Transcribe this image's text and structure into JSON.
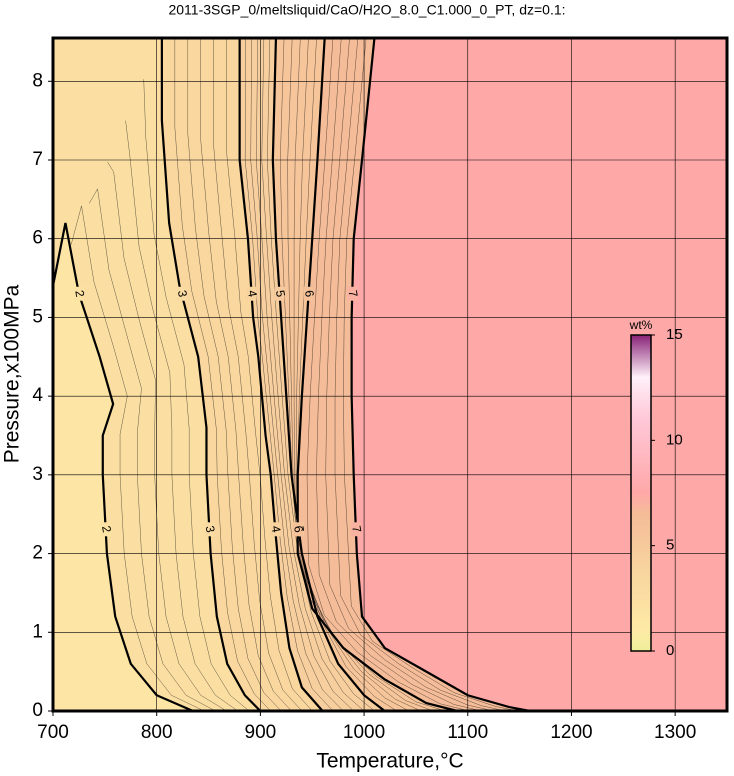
{
  "chart_data": {
    "type": "contour",
    "title": "2011-3SGP_0/meltsliquid/CaO/H2O_8.0_C1.000_0_PT, dz=0.1:",
    "x_label": "Temperature,°C",
    "y_label": "Pressure,x100MPa",
    "xlim": [
      700,
      1350
    ],
    "ylim": [
      0,
      8.55
    ],
    "xticks": [
      700,
      800,
      900,
      1000,
      1100,
      1200,
      1300
    ],
    "yticks": [
      0,
      1,
      2,
      3,
      4,
      5,
      6,
      7,
      8
    ],
    "grid": true,
    "colorbar": {
      "label": "wt%",
      "range": [
        0,
        15
      ],
      "ticks": [
        0,
        5,
        10,
        15
      ],
      "stops": [
        {
          "value": 0,
          "color": "#eeee99"
        },
        {
          "value": 1,
          "color": "#feeaa6"
        },
        {
          "value": 4,
          "color": "#f8d39e"
        },
        {
          "value": 6.5,
          "color": "#f4bc98"
        },
        {
          "value": 7.5,
          "color": "#ffa8a8"
        },
        {
          "value": 11,
          "color": "#ffc8d8"
        },
        {
          "value": 13,
          "color": "#fff0f8"
        },
        {
          "value": 15,
          "color": "#882277"
        }
      ]
    },
    "contours": [
      {
        "level": 2,
        "x": [
          700,
          712,
          725,
          745,
          758,
          748,
          748,
          752,
          760,
          775,
          800,
          835
        ],
        "y": [
          5.4,
          6.2,
          5.3,
          4.5,
          3.9,
          3.5,
          3.0,
          2.0,
          1.2,
          0.6,
          0.2,
          0
        ]
      },
      {
        "level": 3,
        "x": [
          805,
          805,
          812,
          822,
          840,
          848,
          848,
          852,
          858,
          868,
          885,
          900
        ],
        "y": [
          8.55,
          7.5,
          6.2,
          5.4,
          4.5,
          3.6,
          3.0,
          2.0,
          1.2,
          0.6,
          0.2,
          0
        ]
      },
      {
        "level": 4,
        "x": [
          880,
          880,
          888,
          893,
          898,
          905,
          910,
          915,
          920,
          928,
          940,
          960
        ],
        "y": [
          8.55,
          7.0,
          6.0,
          5.0,
          4.5,
          3.5,
          3.0,
          2.2,
          1.5,
          0.8,
          0.3,
          0
        ]
      },
      {
        "level": 5,
        "x": [
          915,
          912,
          915,
          920,
          925,
          930,
          940,
          955,
          975,
          1000,
          1020
        ],
        "y": [
          8.55,
          7.0,
          6.0,
          5.0,
          4.0,
          3.0,
          2.0,
          1.2,
          0.6,
          0.2,
          0
        ]
      },
      {
        "level": 6,
        "x": [
          962,
          955,
          950,
          945,
          940,
          936,
          936,
          950,
          980,
          1020,
          1060,
          1090
        ],
        "y": [
          8.55,
          7.0,
          6.0,
          5.0,
          4.0,
          3.0,
          2.0,
          1.3,
          0.8,
          0.4,
          0.1,
          0
        ]
      },
      {
        "level": 7,
        "x": [
          1010,
          998,
          990,
          988,
          988,
          990,
          993,
          998,
          1020,
          1060,
          1100,
          1140,
          1160
        ],
        "y": [
          8.55,
          7.0,
          6.0,
          5.0,
          4.0,
          3.0,
          2.0,
          1.2,
          0.8,
          0.5,
          0.2,
          0.05,
          0
        ]
      }
    ]
  }
}
